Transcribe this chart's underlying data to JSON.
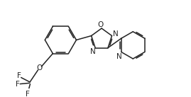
{
  "bg_color": "#ffffff",
  "line_color": "#222222",
  "line_width": 1.1,
  "text_color": "#222222",
  "font_size": 7.0,
  "figsize": [
    2.69,
    1.37
  ],
  "dpi": 100,
  "xlim": [
    0,
    10
  ],
  "ylim": [
    0,
    5.1
  ]
}
